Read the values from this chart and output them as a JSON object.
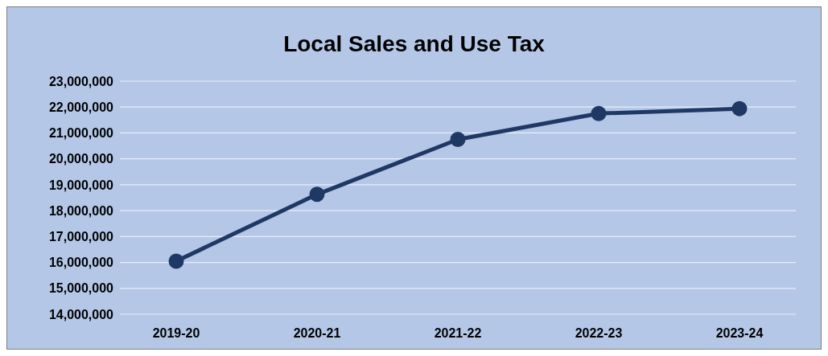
{
  "chart_data": {
    "type": "line",
    "title": "Local Sales and Use Tax",
    "categories": [
      "2019-20",
      "2020-21",
      "2021-22",
      "2022-23",
      "2023-24"
    ],
    "series": [
      {
        "color": "#203864",
        "values": [
          16050000,
          18630000,
          20750000,
          21750000,
          21940000
        ]
      }
    ],
    "ylim": [
      14000000,
      23000000
    ],
    "yticks": [
      {
        "value": 14000000,
        "label": "14,000,000"
      },
      {
        "value": 15000000,
        "label": "15,000,000"
      },
      {
        "value": 16000000,
        "label": "16,000,000"
      },
      {
        "value": 17000000,
        "label": "17,000,000"
      },
      {
        "value": 18000000,
        "label": "18,000,000"
      },
      {
        "value": 19000000,
        "label": "19,000,000"
      },
      {
        "value": 20000000,
        "label": "20,000,000"
      },
      {
        "value": 21000000,
        "label": "21,000,000"
      },
      {
        "value": 22000000,
        "label": "22,000,000"
      },
      {
        "value": 23000000,
        "label": "23,000,000"
      }
    ],
    "grid": "y",
    "marker": "circle",
    "line_style": "solid"
  }
}
